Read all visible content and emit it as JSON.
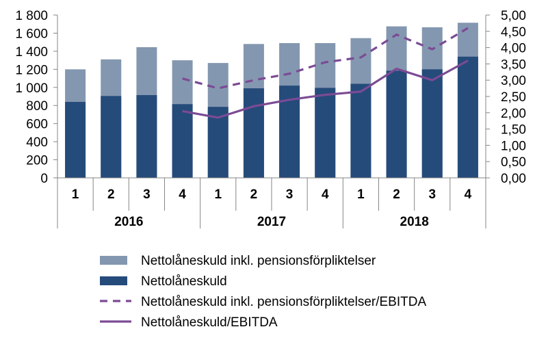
{
  "chart_data": {
    "type": "bar",
    "title": "",
    "groups": [
      {
        "label": "2016",
        "quarters": [
          "1",
          "2",
          "3",
          "4"
        ]
      },
      {
        "label": "2017",
        "quarters": [
          "1",
          "2",
          "3",
          "4"
        ]
      },
      {
        "label": "2018",
        "quarters": [
          "1",
          "2",
          "3",
          "4"
        ]
      }
    ],
    "categories": [
      "1",
      "2",
      "3",
      "4",
      "1",
      "2",
      "3",
      "4",
      "1",
      "2",
      "3",
      "4"
    ],
    "series": [
      {
        "name": "Nettolåneskuld inkl. pensionsförpliktelser",
        "kind": "bar",
        "axis": "left",
        "color": "#8497b0",
        "values": [
          1200,
          1310,
          1445,
          1300,
          1270,
          1480,
          1490,
          1490,
          1545,
          1675,
          1665,
          1715
        ]
      },
      {
        "name": "Nettolåneskuld",
        "kind": "bar",
        "axis": "left",
        "color": "#254b7a",
        "values": [
          840,
          905,
          915,
          815,
          785,
          990,
          1020,
          995,
          1040,
          1185,
          1200,
          1340
        ]
      },
      {
        "name": "Nettolåneskuld inkl. pensionsförpliktelser/EBITDA",
        "kind": "line",
        "style": "dashed",
        "axis": "right",
        "color": "#7b4b94",
        "values": [
          null,
          null,
          null,
          3.05,
          2.75,
          3.0,
          3.2,
          3.55,
          3.7,
          4.4,
          3.95,
          4.6
        ]
      },
      {
        "name": "Nettolåneskuld/EBITDA",
        "kind": "line",
        "style": "solid",
        "axis": "right",
        "color": "#7b4b94",
        "values": [
          null,
          null,
          null,
          2.05,
          1.85,
          2.2,
          2.4,
          2.55,
          2.65,
          3.35,
          3.0,
          3.6
        ]
      }
    ],
    "y_left": {
      "ylim": [
        0,
        1800
      ],
      "ticks": [
        "0",
        "200",
        "400",
        "600",
        "800",
        "1 000",
        "1 200",
        "1 400",
        "1 600",
        "1 800"
      ]
    },
    "y_right": {
      "ylim": [
        0,
        5
      ],
      "ticks": [
        "0,00",
        "0,50",
        "1,00",
        "1,50",
        "2,00",
        "2,50",
        "3,00",
        "3,50",
        "4,00",
        "4,50",
        "5,00"
      ]
    },
    "legend_position": "bottom",
    "legend_order": [
      0,
      1,
      2,
      3
    ]
  }
}
